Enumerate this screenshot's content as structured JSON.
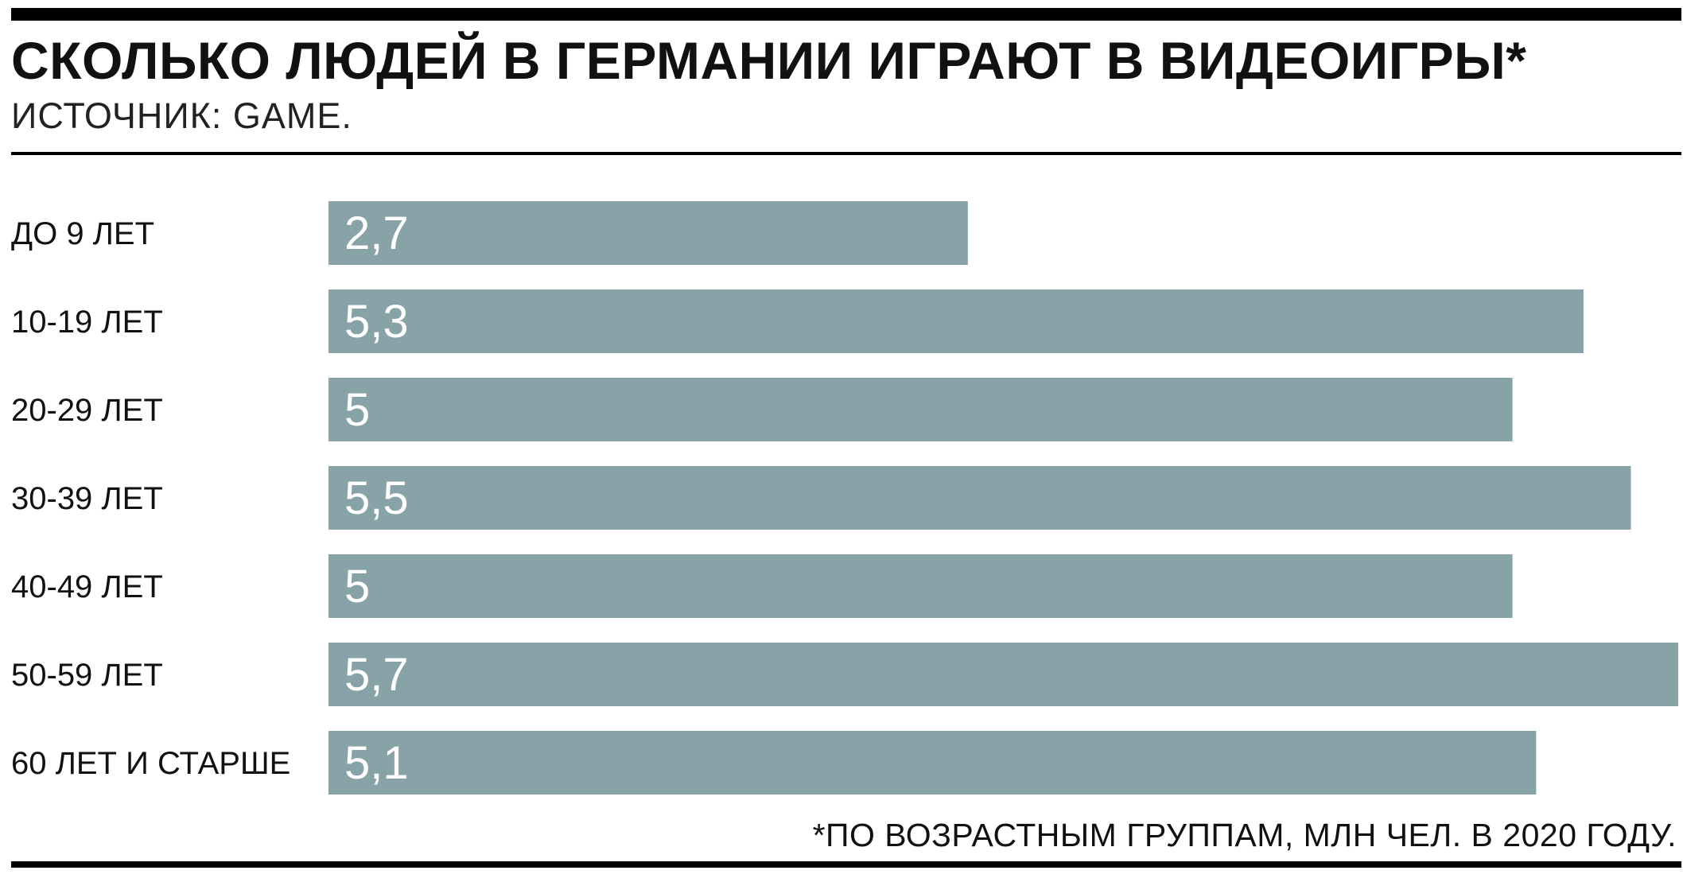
{
  "title": "СКОЛЬКО ЛЮДЕЙ В ГЕРМАНИИ ИГРАЮТ В ВИДЕОИГРЫ*",
  "subtitle": "ИСТОЧНИК: GAME.",
  "footnote": "*ПО ВОЗРАСТНЫМ ГРУППАМ, МЛН ЧЕЛ. В 2020 ГОДУ.",
  "colors": {
    "bar": "#87a3a8",
    "text": "#111111",
    "bar_label": "#ffffff"
  },
  "chart_data": {
    "type": "bar",
    "orientation": "horizontal",
    "categories": [
      "ДО 9 ЛЕТ",
      "10-19 ЛЕТ",
      "20-29 ЛЕТ",
      "30-39 ЛЕТ",
      "40-49 ЛЕТ",
      "50-59 ЛЕТ",
      "60 ЛЕТ И СТАРШЕ"
    ],
    "values": [
      2.7,
      5.3,
      5,
      5.5,
      5,
      5.7,
      5.1
    ],
    "value_labels": [
      "2,7",
      "5,3",
      "5",
      "5,5",
      "5",
      "5,7",
      "5,1"
    ],
    "title": "СКОЛЬКО ЛЮДЕЙ В ГЕРМАНИИ ИГРАЮТ В ВИДЕОИГРЫ*",
    "xlim": [
      0,
      5.7
    ],
    "grid": false,
    "legend": "none"
  }
}
